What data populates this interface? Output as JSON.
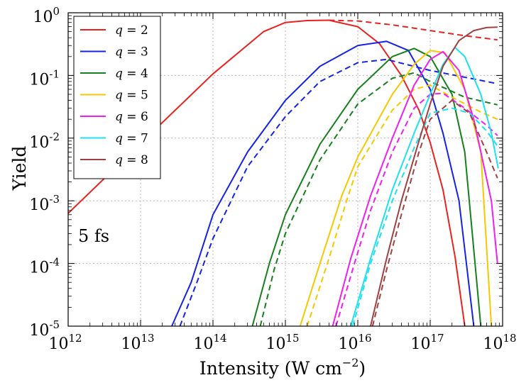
{
  "chart_data": {
    "type": "line",
    "xlabel": "Intensity (W cm",
    "xlabel_sup": "−2",
    "xlabel_end": ")",
    "ylabel": "Yield",
    "x_scale": "log",
    "y_scale": "log",
    "xlim": [
      1000000000000.0,
      1e+18
    ],
    "ylim": [
      1e-05,
      1
    ],
    "x_ticks": [
      {
        "value": 1000000000000.0,
        "base": "10",
        "exp": "12"
      },
      {
        "value": 10000000000000.0,
        "base": "10",
        "exp": "13"
      },
      {
        "value": 100000000000000.0,
        "base": "10",
        "exp": "14"
      },
      {
        "value": 1000000000000000.0,
        "base": "10",
        "exp": "15"
      },
      {
        "value": 1e+16,
        "base": "10",
        "exp": "16"
      },
      {
        "value": 1e+17,
        "base": "10",
        "exp": "17"
      },
      {
        "value": 1e+18,
        "base": "10",
        "exp": "18"
      }
    ],
    "y_ticks": [
      {
        "value": 1e-05,
        "base": "10",
        "exp": "-5"
      },
      {
        "value": 0.0001,
        "base": "10",
        "exp": "-4"
      },
      {
        "value": 0.001,
        "base": "10",
        "exp": "-3"
      },
      {
        "value": 0.01,
        "base": "10",
        "exp": "-2"
      },
      {
        "value": 0.1,
        "base": "10",
        "exp": "-1"
      },
      {
        "value": 1,
        "base": "10",
        "exp": "0"
      }
    ],
    "grid": true,
    "legend_position": "top-left",
    "annotation": "5 fs",
    "series": [
      {
        "name": "q = 2",
        "legend_var": "q",
        "legend_val": "2",
        "color": "#e8231f",
        "solid": [
          [
            1000000000000.0,
            0.00063
          ],
          [
            10000000000000.0,
            0.0082
          ],
          [
            100000000000000.0,
            0.106
          ],
          [
            500000000000000.0,
            0.5
          ],
          [
            1000000000000000.0,
            0.7
          ],
          [
            2000000000000000.0,
            0.75
          ],
          [
            4000000000000000.0,
            0.76
          ],
          [
            1e+16,
            0.6
          ],
          [
            2e+16,
            0.32
          ],
          [
            4e+16,
            0.1
          ],
          [
            7e+16,
            0.028
          ],
          [
            1e+17,
            0.0085
          ],
          [
            1.5e+17,
            0.0015
          ],
          [
            2.2e+17,
            0.00013
          ],
          [
            3e+17,
            1e-05
          ]
        ],
        "dashed": [
          [
            4000000000000000.0,
            0.76
          ],
          [
            1e+16,
            0.74
          ],
          [
            3e+16,
            0.64
          ],
          [
            1e+17,
            0.52
          ],
          [
            3e+17,
            0.43
          ],
          [
            8.5e+17,
            0.37
          ]
        ]
      },
      {
        "name": "q = 3",
        "legend_var": "q",
        "legend_val": "3",
        "color": "#1522e8",
        "solid": [
          [
            27000000000000.0,
            1e-05
          ],
          [
            50000000000000.0,
            5e-05
          ],
          [
            100000000000000.0,
            0.0006
          ],
          [
            300000000000000.0,
            0.006
          ],
          [
            1000000000000000.0,
            0.04
          ],
          [
            3000000000000000.0,
            0.14
          ],
          [
            1e+16,
            0.3
          ],
          [
            2.5e+16,
            0.35
          ],
          [
            5e+16,
            0.25
          ],
          [
            1e+17,
            0.06
          ],
          [
            1.5e+17,
            0.012
          ],
          [
            2.5e+17,
            0.001
          ],
          [
            4e+17,
            1e-05
          ]
        ],
        "dashed": [
          [
            35000000000000.0,
            1e-05
          ],
          [
            60000000000000.0,
            5e-05
          ],
          [
            100000000000000.0,
            0.00025
          ],
          [
            300000000000000.0,
            0.0035
          ],
          [
            1000000000000000.0,
            0.022
          ],
          [
            3000000000000000.0,
            0.08
          ],
          [
            1e+16,
            0.16
          ],
          [
            2.5e+16,
            0.18
          ],
          [
            1e+17,
            0.12
          ],
          [
            8.5e+17,
            0.074
          ]
        ]
      },
      {
        "name": "q = 4",
        "legend_var": "q",
        "legend_val": "4",
        "color": "#15801c",
        "solid": [
          [
            350000000000000.0,
            1e-05
          ],
          [
            600000000000000.0,
            0.0001
          ],
          [
            1000000000000000.0,
            0.0006
          ],
          [
            3000000000000000.0,
            0.008
          ],
          [
            1e+16,
            0.06
          ],
          [
            3e+16,
            0.2
          ],
          [
            6e+16,
            0.27
          ],
          [
            1e+17,
            0.2
          ],
          [
            2e+17,
            0.05
          ],
          [
            3e+17,
            0.006
          ],
          [
            5e+17,
            1e-05
          ]
        ],
        "dashed": [
          [
            450000000000000.0,
            1e-05
          ],
          [
            700000000000000.0,
            8e-05
          ],
          [
            1000000000000000.0,
            0.0003
          ],
          [
            3000000000000000.0,
            0.0045
          ],
          [
            1e+16,
            0.035
          ],
          [
            3e+16,
            0.09
          ],
          [
            6e+16,
            0.11
          ],
          [
            1e+17,
            0.08
          ],
          [
            3e+17,
            0.045
          ],
          [
            8.5e+17,
            0.034
          ]
        ]
      },
      {
        "name": "q = 5",
        "legend_var": "q",
        "legend_val": "5",
        "color": "#f5c800",
        "solid": [
          [
            1600000000000000.0,
            1e-05
          ],
          [
            3000000000000000.0,
            0.0001
          ],
          [
            6000000000000000.0,
            0.0012
          ],
          [
            1e+16,
            0.005
          ],
          [
            3e+16,
            0.05
          ],
          [
            6e+16,
            0.15
          ],
          [
            1e+17,
            0.25
          ],
          [
            1.6e+17,
            0.23
          ],
          [
            3e+17,
            0.06
          ],
          [
            5e+17,
            0.006
          ],
          [
            7e+17,
            1e-05
          ]
        ],
        "dashed": [
          [
            2000000000000000.0,
            1e-05
          ],
          [
            4000000000000000.0,
            0.00012
          ],
          [
            7000000000000000.0,
            0.001
          ],
          [
            1e+16,
            0.0035
          ],
          [
            3e+16,
            0.028
          ],
          [
            6e+16,
            0.06
          ],
          [
            1e+17,
            0.07
          ],
          [
            2e+17,
            0.045
          ],
          [
            5e+17,
            0.026
          ],
          [
            8.5e+17,
            0.02
          ]
        ]
      },
      {
        "name": "q = 6",
        "legend_var": "q",
        "legend_val": "6",
        "color": "#f01ef0",
        "solid": [
          [
            4500000000000000.0,
            1e-05
          ],
          [
            8000000000000000.0,
            0.00012
          ],
          [
            1.5e+16,
            0.0012
          ],
          [
            3e+16,
            0.01
          ],
          [
            6e+16,
            0.07
          ],
          [
            1e+17,
            0.18
          ],
          [
            1.5e+17,
            0.24
          ],
          [
            2.5e+17,
            0.12
          ],
          [
            4e+17,
            0.02
          ],
          [
            7e+17,
            0.001
          ],
          [
            8.5e+17,
            0.0001
          ]
        ],
        "dashed": [
          [
            5000000000000000.0,
            1e-05
          ],
          [
            9000000000000000.0,
            0.0001
          ],
          [
            1.5e+16,
            0.0007
          ],
          [
            3e+16,
            0.006
          ],
          [
            6e+16,
            0.03
          ],
          [
            1e+17,
            0.05
          ],
          [
            1.5e+17,
            0.052
          ],
          [
            3e+17,
            0.03
          ],
          [
            6e+17,
            0.016
          ],
          [
            8.5e+17,
            0.011
          ]
        ]
      },
      {
        "name": "q = 7",
        "legend_var": "q",
        "legend_val": "7",
        "color": "#1ee0f0",
        "solid": [
          [
            8000000000000000.0,
            1e-05
          ],
          [
            1.5e+16,
            0.00012
          ],
          [
            3e+16,
            0.0015
          ],
          [
            6e+16,
            0.012
          ],
          [
            1e+17,
            0.05
          ],
          [
            1.5e+17,
            0.15
          ],
          [
            2.2e+17,
            0.28
          ],
          [
            3e+17,
            0.2
          ],
          [
            5e+17,
            0.05
          ],
          [
            7e+17,
            0.012
          ],
          [
            8.7e+17,
            0.0033
          ]
        ],
        "dashed": [
          [
            8500000000000000.0,
            1e-05
          ],
          [
            1.5e+16,
            0.0001
          ],
          [
            3e+16,
            0.001
          ],
          [
            6e+16,
            0.007
          ],
          [
            1e+17,
            0.025
          ],
          [
            2e+17,
            0.03
          ],
          [
            3.5e+17,
            0.025
          ],
          [
            6e+17,
            0.013
          ],
          [
            8.5e+17,
            0.0075
          ]
        ]
      },
      {
        "name": "q = 8",
        "legend_var": "q",
        "legend_val": "8",
        "color": "#a04040",
        "solid": [
          [
            1.5e+16,
            1e-05
          ],
          [
            2.5e+16,
            0.00012
          ],
          [
            4e+16,
            0.001
          ],
          [
            7e+16,
            0.009
          ],
          [
            1e+17,
            0.035
          ],
          [
            1.5e+17,
            0.14
          ],
          [
            2.5e+17,
            0.36
          ],
          [
            4e+17,
            0.52
          ],
          [
            6e+17,
            0.58
          ],
          [
            8.5e+17,
            0.59
          ]
        ],
        "dashed": [
          [
            1.6e+16,
            1e-05
          ],
          [
            2.5e+16,
            8e-05
          ],
          [
            4e+16,
            0.0006
          ],
          [
            7e+16,
            0.006
          ],
          [
            1e+17,
            0.02
          ],
          [
            2e+17,
            0.04
          ],
          [
            3.5e+17,
            0.025
          ],
          [
            6e+17,
            0.006
          ],
          [
            8.5e+17,
            0.0023
          ]
        ]
      }
    ]
  }
}
